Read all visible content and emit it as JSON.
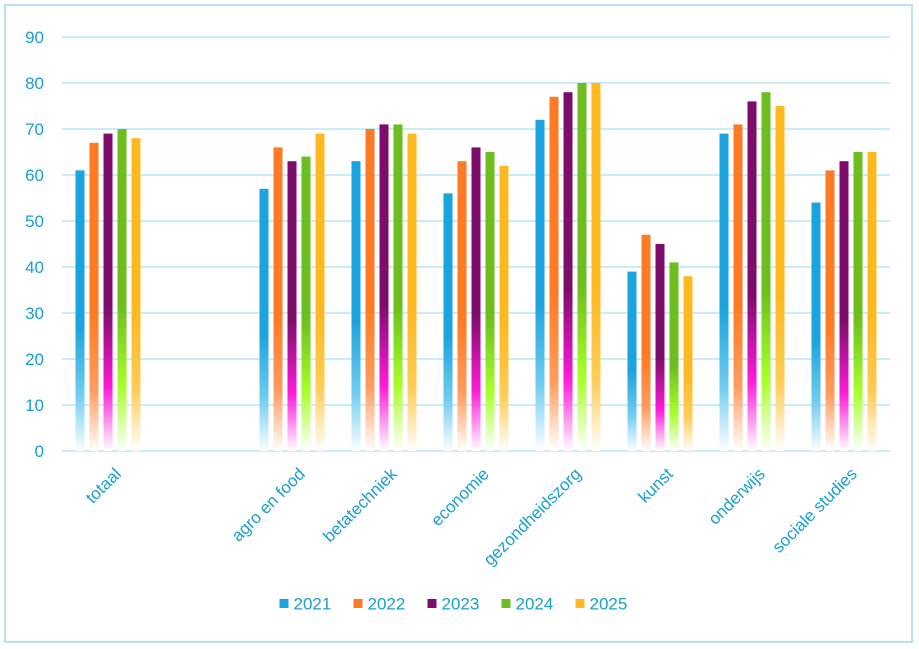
{
  "chart_data": {
    "type": "bar",
    "title": "",
    "xlabel": "",
    "ylabel": "",
    "ylim": [
      0,
      90
    ],
    "yticks": [
      0,
      10,
      20,
      30,
      40,
      50,
      60,
      70,
      80,
      90
    ],
    "grid": true,
    "legend_position": "bottom",
    "categories": [
      "totaal",
      "",
      "agro en food",
      "betatechniek",
      "economie",
      "gezondheidszorg",
      "kunst",
      "onderwijs",
      "sociale studies"
    ],
    "series": [
      {
        "name": "2021",
        "color": "#1aa3dc",
        "values": [
          61,
          null,
          57,
          63,
          56,
          72,
          39,
          69,
          54
        ]
      },
      {
        "name": "2022",
        "color": "#ff7a22",
        "values": [
          67,
          null,
          66,
          70,
          63,
          77,
          47,
          71,
          61
        ]
      },
      {
        "name": "2023",
        "color": "#7d0c6a",
        "values": [
          69,
          null,
          63,
          71,
          66,
          78,
          45,
          76,
          63
        ]
      },
      {
        "name": "2024",
        "color": "#6cbe1e",
        "values": [
          70,
          null,
          64,
          71,
          65,
          80,
          41,
          78,
          65
        ]
      },
      {
        "name": "2025",
        "color": "#ffb820",
        "values": [
          68,
          null,
          69,
          69,
          62,
          80,
          38,
          75,
          65
        ]
      }
    ],
    "gradient_mid_colors": [
      "#6fcdf0",
      "#ff9c5e",
      "#ff1ad9",
      "#a8ff2a",
      "#ffcc55"
    ]
  }
}
